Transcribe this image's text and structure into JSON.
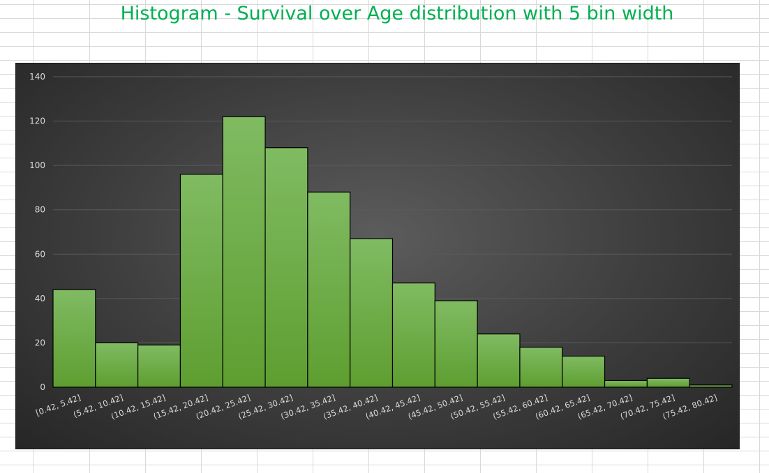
{
  "chart_data": {
    "type": "bar",
    "title": "Histogram - Survival over Age distribution with 5 bin width",
    "xlabel": "",
    "ylabel": "",
    "categories": [
      "[0.42, 5.42]",
      "(5.42, 10.42]",
      "(10.42, 15.42]",
      "(15.42, 20.42]",
      "(20.42, 25.42]",
      "(25.42, 30.42]",
      "(30.42, 35.42]",
      "(35.42, 40.42]",
      "(40.42, 45.42]",
      "(45.42, 50.42]",
      "(50.42, 55.42]",
      "(55.42, 60.42]",
      "(60.42, 65.42]",
      "(65.42, 70.42]",
      "(70.42, 75.42]",
      "(75.42, 80.42]"
    ],
    "values": [
      44,
      20,
      19,
      96,
      122,
      108,
      88,
      67,
      47,
      39,
      24,
      18,
      14,
      3,
      4,
      1
    ],
    "ylim": [
      0,
      140
    ],
    "yticks": [
      0,
      20,
      40,
      60,
      80,
      100,
      120,
      140
    ],
    "grid": true,
    "legend": "none",
    "colors": {
      "bar_top": "#80bb62",
      "bar_bottom": "#5e9e30",
      "bar_edge": "#000000",
      "title": "#00b050",
      "plot_background": "#3d3d3d"
    }
  }
}
